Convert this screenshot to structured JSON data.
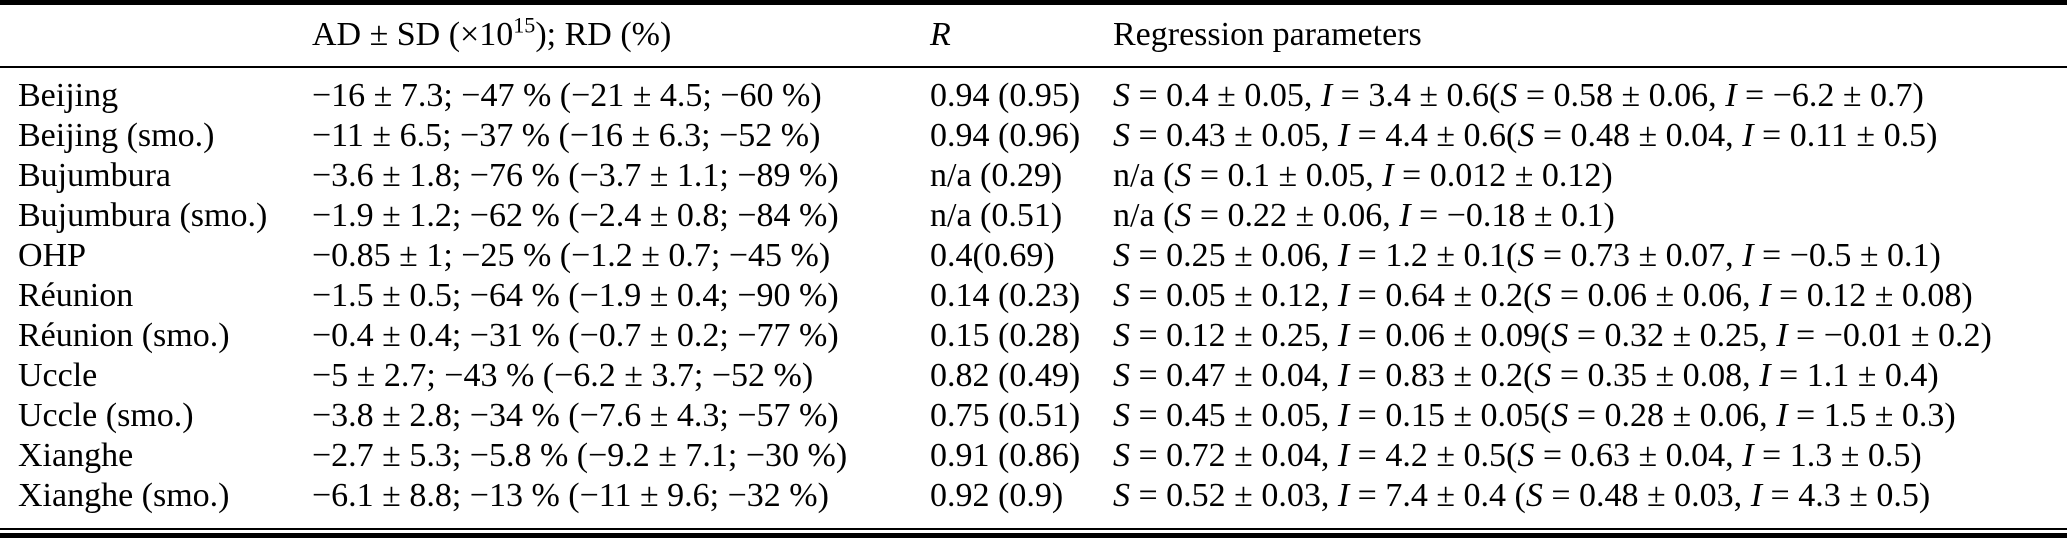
{
  "colors": {
    "text": "#000000",
    "background": "#ffffff",
    "rule": "#000000"
  },
  "table": {
    "header": {
      "col_station": "",
      "col_ad": {
        "prefix": "AD ± SD (×10",
        "sup": "15",
        "suffix": "); RD (%)"
      },
      "col_r": "R",
      "col_regression": "Regression parameters"
    },
    "rows": [
      {
        "station": "Beijing",
        "ad_sd_rd": "−16 ± 7.3; −47 % (−21 ± 4.5; −60 %)",
        "r": "0.94 (0.95)",
        "regression": "S = 0.4 ± 0.05, I = 3.4 ± 0.6(S = 0.58 ± 0.06, I = −6.2 ± 0.7)"
      },
      {
        "station": "Beijing (smo.)",
        "ad_sd_rd": "−11 ± 6.5; −37 % (−16 ± 6.3; −52 %)",
        "r": "0.94 (0.96)",
        "regression": "S = 0.43 ± 0.05, I = 4.4 ± 0.6(S = 0.48 ± 0.04, I = 0.11 ± 0.5)"
      },
      {
        "station": "Bujumbura",
        "ad_sd_rd": "−3.6 ± 1.8; −76 % (−3.7 ± 1.1; −89 %)",
        "r": "n/a (0.29)",
        "regression": "n/a (S = 0.1 ± 0.05, I = 0.012 ± 0.12)"
      },
      {
        "station": "Bujumbura (smo.)",
        "ad_sd_rd": "−1.9 ± 1.2; −62 % (−2.4 ± 0.8; −84 %)",
        "r": "n/a (0.51)",
        "regression": "n/a (S = 0.22 ± 0.06, I = −0.18 ± 0.1)"
      },
      {
        "station": "OHP",
        "ad_sd_rd": "−0.85 ± 1; −25 % (−1.2 ± 0.7; −45 %)",
        "r": "0.4(0.69)",
        "regression": "S = 0.25 ± 0.06, I = 1.2 ± 0.1(S = 0.73 ± 0.07, I = −0.5 ± 0.1)"
      },
      {
        "station": "Réunion",
        "ad_sd_rd": "−1.5 ± 0.5; −64 % (−1.9 ± 0.4; −90 %)",
        "r": "0.14 (0.23)",
        "regression": "S = 0.05 ± 0.12, I = 0.64 ± 0.2(S = 0.06 ± 0.06, I = 0.12 ± 0.08)"
      },
      {
        "station": "Réunion (smo.)",
        "ad_sd_rd": "−0.4 ± 0.4; −31 % (−0.7 ± 0.2; −77 %)",
        "r": "0.15 (0.28)",
        "regression": "S = 0.12 ± 0.25, I = 0.06 ± 0.09(S = 0.32 ± 0.25, I = −0.01 ± 0.2)"
      },
      {
        "station": "Uccle",
        "ad_sd_rd": "−5 ± 2.7; −43 % (−6.2 ± 3.7; −52 %)",
        "r": "0.82 (0.49)",
        "regression": "S = 0.47 ± 0.04, I = 0.83 ± 0.2(S = 0.35 ± 0.08, I = 1.1 ± 0.4)"
      },
      {
        "station": "Uccle (smo.)",
        "ad_sd_rd": "−3.8 ± 2.8; −34 % (−7.6 ± 4.3; −57 %)",
        "r": "0.75 (0.51)",
        "regression": "S = 0.45 ± 0.05, I = 0.15 ± 0.05(S = 0.28 ± 0.06, I = 1.5 ± 0.3)"
      },
      {
        "station": "Xianghe",
        "ad_sd_rd": "−2.7 ± 5.3; −5.8 % (−9.2 ± 7.1; −30 %)",
        "r": "0.91 (0.86)",
        "regression": "S = 0.72 ± 0.04, I = 4.2 ± 0.5(S = 0.63 ± 0.04, I = 1.3 ± 0.5)"
      },
      {
        "station": "Xianghe (smo.)",
        "ad_sd_rd": "−6.1 ± 8.8; −13 % (−11 ± 9.6; −32 %)",
        "r": "0.92 (0.9)",
        "regression": "S = 0.52 ± 0.03, I = 7.4 ± 0.4 (S = 0.48 ± 0.03, I = 4.3 ± 0.5)"
      }
    ]
  }
}
